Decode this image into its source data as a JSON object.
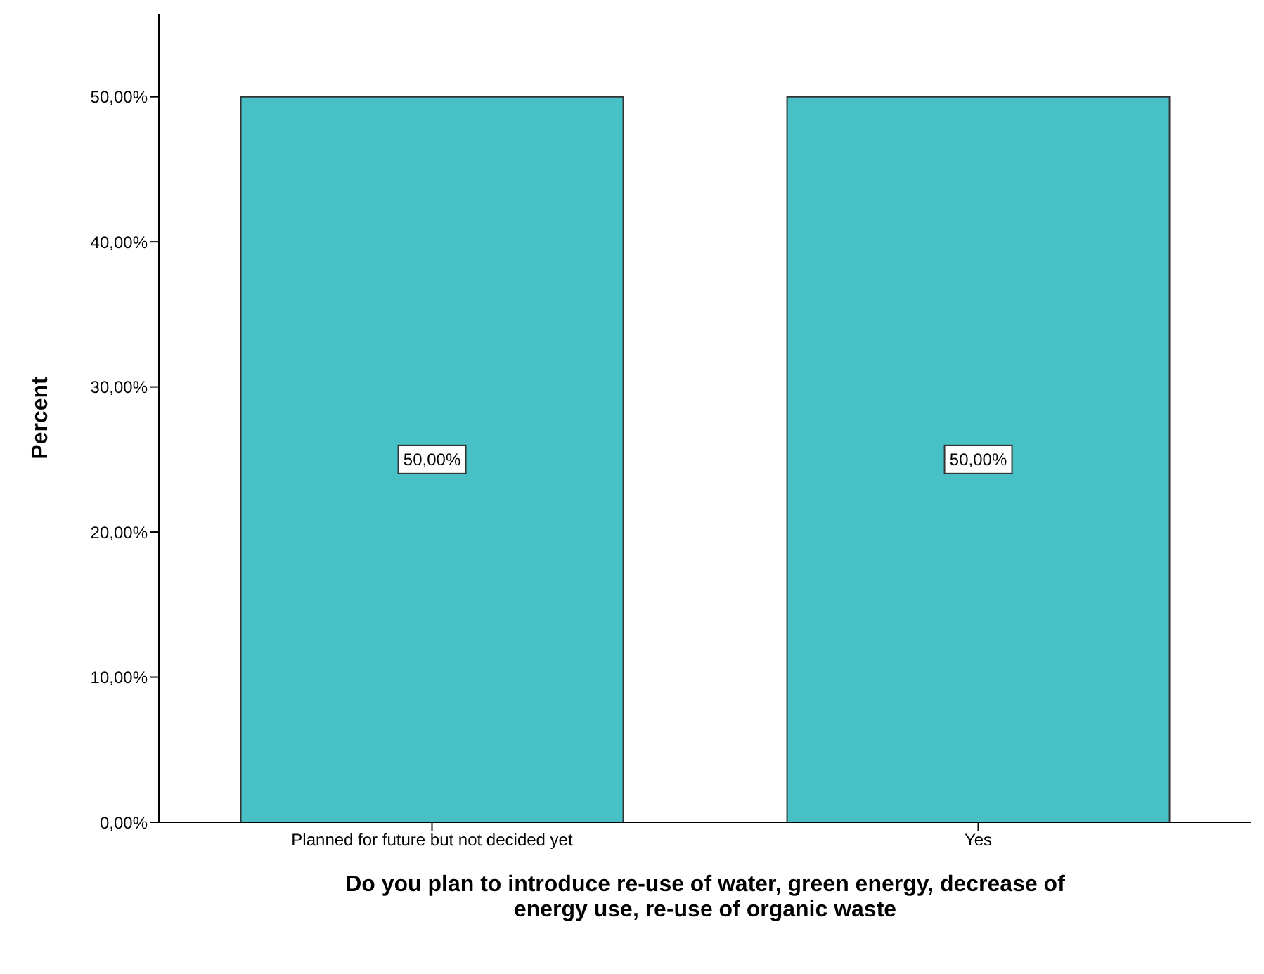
{
  "chart_data": {
    "type": "bar",
    "xlabel": "Do you plan to introduce re-use of water, green energy, decrease of\nenergy use, re-use of organic waste",
    "ylabel": "Percent",
    "categories": [
      "Planned for future but not decided yet",
      "Yes"
    ],
    "values": [
      50,
      50
    ],
    "color": "#48c1c6",
    "value_labels": [
      "50,00%",
      "50,00%"
    ],
    "ylim": [
      0,
      55.7
    ],
    "yticks": [
      {
        "value": 0,
        "label": "0,00%"
      },
      {
        "value": 10,
        "label": "10,00%"
      },
      {
        "value": 20,
        "label": "20,00%"
      },
      {
        "value": 30,
        "label": "30,00%"
      },
      {
        "value": 40,
        "label": "40,00%"
      },
      {
        "value": 50,
        "label": "50,00%"
      }
    ]
  }
}
